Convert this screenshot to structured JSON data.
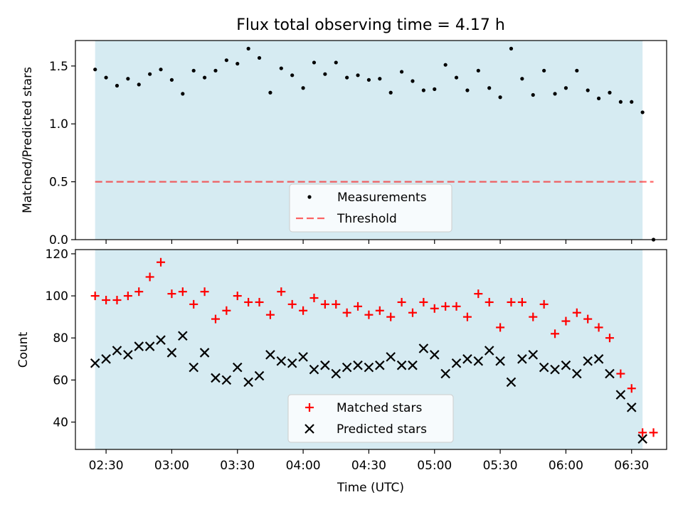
{
  "title": "Flux total observing time = 4.17 h",
  "xlabel": "Time (UTC)",
  "x_tick_labels": [
    "02:30",
    "03:00",
    "03:30",
    "04:00",
    "04:30",
    "05:00",
    "05:30",
    "06:00",
    "06:30"
  ],
  "colors": {
    "shade": "#add8e6",
    "threshold": "#ff0000",
    "matched": "#ff0000",
    "predicted": "#000000",
    "measurements": "#000000"
  },
  "chart_data": [
    {
      "type": "scatter",
      "ylabel": "Matched/Predicted stars",
      "ylim": [
        0,
        1.72
      ],
      "yticks": [
        "0.0",
        "0.5",
        "1.0",
        "1.5"
      ],
      "xlim": [
        "02:16",
        "06:46"
      ],
      "shaded_span": [
        "02:25",
        "06:35"
      ],
      "legend": {
        "placement": "lower-center",
        "entries": [
          "Measurements",
          "Threshold"
        ]
      },
      "threshold": 0.5,
      "x": [
        "02:25",
        "02:30",
        "02:35",
        "02:40",
        "02:45",
        "02:50",
        "02:55",
        "03:00",
        "03:05",
        "03:10",
        "03:15",
        "03:20",
        "03:25",
        "03:30",
        "03:35",
        "03:40",
        "03:45",
        "03:50",
        "03:55",
        "04:00",
        "04:05",
        "04:10",
        "04:15",
        "04:20",
        "04:25",
        "04:30",
        "04:35",
        "04:40",
        "04:45",
        "04:50",
        "04:55",
        "05:00",
        "05:05",
        "05:10",
        "05:15",
        "05:20",
        "05:25",
        "05:30",
        "05:35",
        "05:40",
        "05:45",
        "05:50",
        "05:55",
        "06:00",
        "06:05",
        "06:10",
        "06:15",
        "06:20",
        "06:25",
        "06:30",
        "06:35",
        "06:40"
      ],
      "series": [
        {
          "name": "Measurements",
          "values": [
            1.47,
            1.4,
            1.33,
            1.39,
            1.34,
            1.43,
            1.47,
            1.38,
            1.26,
            1.46,
            1.4,
            1.46,
            1.55,
            1.52,
            1.65,
            1.57,
            1.27,
            1.48,
            1.42,
            1.31,
            1.53,
            1.43,
            1.53,
            1.4,
            1.42,
            1.38,
            1.39,
            1.27,
            1.45,
            1.37,
            1.29,
            1.3,
            1.51,
            1.4,
            1.29,
            1.46,
            1.31,
            1.23,
            1.65,
            1.39,
            1.25,
            1.46,
            1.26,
            1.31,
            1.46,
            1.29,
            1.22,
            1.27,
            1.19,
            1.19,
            1.1,
            0.0
          ]
        }
      ]
    },
    {
      "type": "scatter",
      "ylabel": "Count",
      "ylim": [
        27,
        122
      ],
      "yticks": [
        "40",
        "60",
        "80",
        "100",
        "120"
      ],
      "xlim": [
        "02:16",
        "06:46"
      ],
      "shaded_span": [
        "02:25",
        "06:35"
      ],
      "legend": {
        "placement": "lower-center",
        "entries": [
          "Matched stars",
          "Predicted stars"
        ]
      },
      "x": [
        "02:25",
        "02:30",
        "02:35",
        "02:40",
        "02:45",
        "02:50",
        "02:55",
        "03:00",
        "03:05",
        "03:10",
        "03:15",
        "03:20",
        "03:25",
        "03:30",
        "03:35",
        "03:40",
        "03:45",
        "03:50",
        "03:55",
        "04:00",
        "04:05",
        "04:10",
        "04:15",
        "04:20",
        "04:25",
        "04:30",
        "04:35",
        "04:40",
        "04:45",
        "04:50",
        "04:55",
        "05:00",
        "05:05",
        "05:10",
        "05:15",
        "05:20",
        "05:25",
        "05:30",
        "05:35",
        "05:40",
        "05:45",
        "05:50",
        "05:55",
        "06:00",
        "06:05",
        "06:10",
        "06:15",
        "06:20",
        "06:25",
        "06:30",
        "06:35",
        "06:40"
      ],
      "series": [
        {
          "name": "Matched stars",
          "values": [
            100,
            98,
            98,
            100,
            102,
            109,
            116,
            101,
            102,
            96,
            102,
            89,
            93,
            100,
            97,
            97,
            91,
            102,
            96,
            93,
            99,
            96,
            96,
            92,
            95,
            91,
            93,
            90,
            97,
            92,
            97,
            94,
            95,
            95,
            90,
            101,
            97,
            85,
            97,
            97,
            90,
            96,
            82,
            88,
            92,
            89,
            85,
            80,
            63,
            56,
            35,
            35
          ]
        },
        {
          "name": "Predicted stars",
          "values": [
            68,
            70,
            74,
            72,
            76,
            76,
            79,
            73,
            81,
            66,
            73,
            61,
            60,
            66,
            59,
            62,
            72,
            69,
            68,
            71,
            65,
            67,
            63,
            66,
            67,
            66,
            67,
            71,
            67,
            67,
            75,
            72,
            63,
            68,
            70,
            69,
            74,
            69,
            59,
            70,
            72,
            66,
            65,
            67,
            63,
            69,
            70,
            63,
            53,
            47,
            32,
            null
          ]
        }
      ]
    }
  ]
}
